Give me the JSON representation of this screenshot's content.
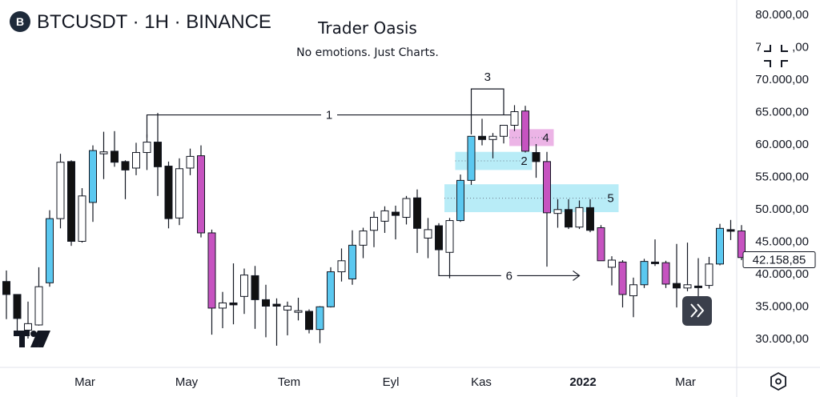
{
  "header": {
    "symbol_badge": "B",
    "symbol": "BTCUSDT · 1H · BINANCE",
    "title": "Trader Oasis",
    "subtitle": "No emotions. Just Charts."
  },
  "colors": {
    "bull": "#5bc8f0",
    "bear": "#c653c0",
    "neutral_dark": "#111111",
    "neutral_light": "#ffffff",
    "zone_blue": "#b8ecf7",
    "zone_pink": "#ecb4e6"
  },
  "icons": [
    "logo-icon",
    "fullscreen-icon",
    "scroll-to-realtime-icon",
    "settings-hexagon-icon"
  ],
  "chart_data": {
    "type": "candlestick",
    "x": [
      "Mar",
      "May",
      "Tem",
      "Eyl",
      "Kas",
      "2022",
      "Mar"
    ],
    "ylim": [
      26000,
      82000
    ],
    "yticks": [
      "80.000,00",
      "75.000,00",
      "70.000,00",
      "65.000,00",
      "60.000,00",
      "55.000,00",
      "50.000,00",
      "45.000,00",
      "40.000,00",
      "35.000,00",
      "30.000,00"
    ],
    "current_price_label": "42.158,85",
    "current_price": 42158.85,
    "candles": [
      {
        "o": 38800,
        "h": 40500,
        "l": 33000,
        "c": 36800,
        "k": "dark"
      },
      {
        "o": 36800,
        "h": 36800,
        "l": 30500,
        "c": 33100,
        "k": "dark"
      },
      {
        "o": 31300,
        "h": 35700,
        "l": 30000,
        "c": 32300,
        "k": "light"
      },
      {
        "o": 32100,
        "h": 41000,
        "l": 32000,
        "c": 38000,
        "k": "light"
      },
      {
        "o": 38600,
        "h": 49800,
        "l": 38000,
        "c": 48500,
        "k": "blue"
      },
      {
        "o": 48500,
        "h": 58500,
        "l": 47000,
        "c": 57200,
        "k": "light"
      },
      {
        "o": 57300,
        "h": 57500,
        "l": 44300,
        "c": 45000,
        "k": "dark"
      },
      {
        "o": 45000,
        "h": 53200,
        "l": 44800,
        "c": 52000,
        "k": "light"
      },
      {
        "o": 51000,
        "h": 59800,
        "l": 48000,
        "c": 59000,
        "k": "blue"
      },
      {
        "o": 58500,
        "h": 61900,
        "l": 54600,
        "c": 58800,
        "k": "light"
      },
      {
        "o": 58900,
        "h": 62000,
        "l": 56500,
        "c": 57200,
        "k": "dark"
      },
      {
        "o": 57300,
        "h": 57500,
        "l": 51500,
        "c": 56000,
        "k": "dark"
      },
      {
        "o": 56300,
        "h": 60200,
        "l": 55200,
        "c": 58700,
        "k": "light"
      },
      {
        "o": 58700,
        "h": 61500,
        "l": 56000,
        "c": 60300,
        "k": "light"
      },
      {
        "o": 60300,
        "h": 64800,
        "l": 52000,
        "c": 56500,
        "k": "dark"
      },
      {
        "o": 56600,
        "h": 57300,
        "l": 47000,
        "c": 48500,
        "k": "dark"
      },
      {
        "o": 48600,
        "h": 57800,
        "l": 47500,
        "c": 56200,
        "k": "light"
      },
      {
        "o": 56300,
        "h": 59300,
        "l": 55200,
        "c": 58100,
        "k": "light"
      },
      {
        "o": 58200,
        "h": 59800,
        "l": 45600,
        "c": 46300,
        "k": "pink"
      },
      {
        "o": 46300,
        "h": 46800,
        "l": 30600,
        "c": 34700,
        "k": "pink"
      },
      {
        "o": 34700,
        "h": 37200,
        "l": 31600,
        "c": 35500,
        "k": "light"
      },
      {
        "o": 35200,
        "h": 41600,
        "l": 32200,
        "c": 35500,
        "k": "dark"
      },
      {
        "o": 36500,
        "h": 40800,
        "l": 33800,
        "c": 39800,
        "k": "light"
      },
      {
        "o": 39700,
        "h": 41200,
        "l": 31500,
        "c": 36000,
        "k": "dark"
      },
      {
        "o": 36000,
        "h": 38300,
        "l": 30200,
        "c": 35000,
        "k": "dark"
      },
      {
        "o": 35000,
        "h": 36200,
        "l": 28900,
        "c": 35300,
        "k": "dark"
      },
      {
        "o": 35000,
        "h": 35700,
        "l": 30500,
        "c": 34400,
        "k": "light"
      },
      {
        "o": 34200,
        "h": 36300,
        "l": 32800,
        "c": 34300,
        "k": "light"
      },
      {
        "o": 34200,
        "h": 34500,
        "l": 30800,
        "c": 31400,
        "k": "dark"
      },
      {
        "o": 31400,
        "h": 35000,
        "l": 29300,
        "c": 34900,
        "k": "blue"
      },
      {
        "o": 34900,
        "h": 41000,
        "l": 34800,
        "c": 40300,
        "k": "blue"
      },
      {
        "o": 40300,
        "h": 43900,
        "l": 38800,
        "c": 42000,
        "k": "light"
      },
      {
        "o": 39200,
        "h": 46700,
        "l": 38300,
        "c": 44400,
        "k": "blue"
      },
      {
        "o": 44400,
        "h": 47100,
        "l": 42400,
        "c": 46600,
        "k": "light"
      },
      {
        "o": 46700,
        "h": 49600,
        "l": 44100,
        "c": 48700,
        "k": "light"
      },
      {
        "o": 48100,
        "h": 50400,
        "l": 46300,
        "c": 49700,
        "k": "light"
      },
      {
        "o": 49500,
        "h": 50500,
        "l": 45300,
        "c": 49000,
        "k": "dark"
      },
      {
        "o": 48700,
        "h": 52000,
        "l": 47600,
        "c": 51600,
        "k": "light"
      },
      {
        "o": 51700,
        "h": 53000,
        "l": 43200,
        "c": 47000,
        "k": "dark"
      },
      {
        "o": 46800,
        "h": 48600,
        "l": 42400,
        "c": 45500,
        "k": "light"
      },
      {
        "o": 47400,
        "h": 47800,
        "l": 43800,
        "c": 43700,
        "k": "dark"
      },
      {
        "o": 43300,
        "h": 48600,
        "l": 39300,
        "c": 48200,
        "k": "light"
      },
      {
        "o": 48200,
        "h": 55300,
        "l": 48000,
        "c": 54400,
        "k": "blue"
      },
      {
        "o": 54400,
        "h": 61000,
        "l": 53700,
        "c": 61200,
        "k": "blue"
      },
      {
        "o": 61200,
        "h": 63900,
        "l": 59800,
        "c": 60700,
        "k": "dark"
      },
      {
        "o": 60700,
        "h": 61700,
        "l": 57800,
        "c": 61200,
        "k": "light"
      },
      {
        "o": 61200,
        "h": 62500,
        "l": 60100,
        "c": 62900,
        "k": "light"
      },
      {
        "o": 62900,
        "h": 66000,
        "l": 62000,
        "c": 65000,
        "k": "light"
      },
      {
        "o": 65100,
        "h": 65900,
        "l": 58700,
        "c": 58900,
        "k": "pink"
      },
      {
        "o": 58700,
        "h": 60000,
        "l": 54800,
        "c": 57300,
        "k": "dark"
      },
      {
        "o": 57300,
        "h": 58800,
        "l": 41100,
        "c": 49400,
        "k": "pink"
      },
      {
        "o": 49300,
        "h": 51500,
        "l": 47100,
        "c": 49900,
        "k": "light"
      },
      {
        "o": 49900,
        "h": 51500,
        "l": 46900,
        "c": 47200,
        "k": "dark"
      },
      {
        "o": 47200,
        "h": 51300,
        "l": 46900,
        "c": 50200,
        "k": "light"
      },
      {
        "o": 50200,
        "h": 51500,
        "l": 46400,
        "c": 46700,
        "k": "dark"
      },
      {
        "o": 47100,
        "h": 47500,
        "l": 42500,
        "c": 42000,
        "k": "pink"
      },
      {
        "o": 41000,
        "h": 42700,
        "l": 38200,
        "c": 42100,
        "k": "light"
      },
      {
        "o": 41800,
        "h": 42100,
        "l": 34800,
        "c": 36800,
        "k": "pink"
      },
      {
        "o": 36600,
        "h": 39400,
        "l": 33300,
        "c": 38300,
        "k": "light"
      },
      {
        "o": 38300,
        "h": 42300,
        "l": 37800,
        "c": 41900,
        "k": "blue"
      },
      {
        "o": 41800,
        "h": 45300,
        "l": 41200,
        "c": 41700,
        "k": "dark"
      },
      {
        "o": 41700,
        "h": 42000,
        "l": 37800,
        "c": 38400,
        "k": "pink"
      },
      {
        "o": 38500,
        "h": 44600,
        "l": 34800,
        "c": 37800,
        "k": "dark"
      },
      {
        "o": 37800,
        "h": 44800,
        "l": 37300,
        "c": 38300,
        "k": "light"
      },
      {
        "o": 38100,
        "h": 42400,
        "l": 34900,
        "c": 38000,
        "k": "dark"
      },
      {
        "o": 38200,
        "h": 42600,
        "l": 37700,
        "c": 41500,
        "k": "light"
      },
      {
        "o": 41500,
        "h": 47700,
        "l": 41300,
        "c": 47000,
        "k": "blue"
      },
      {
        "o": 46800,
        "h": 48300,
        "l": 45200,
        "c": 46600,
        "k": "dark"
      },
      {
        "o": 46600,
        "h": 47500,
        "l": 42100,
        "c": 42500,
        "k": "pink"
      }
    ],
    "annotations": [
      {
        "label": "1",
        "type": "bracket-line",
        "from_candle": 13,
        "to_candle": 47,
        "price": 64500
      },
      {
        "label": "2",
        "type": "zone",
        "from_candle": 42,
        "to_candle": 48,
        "price_low": 56000,
        "price_high": 58800
      },
      {
        "label": "3",
        "type": "bracket",
        "from_candle": 43,
        "to_candle": 46,
        "price": 68500
      },
      {
        "label": "4",
        "type": "zone",
        "from_candle": 47,
        "to_candle": 50,
        "price_low": 59700,
        "price_high": 62300
      },
      {
        "label": "5",
        "type": "zone",
        "from_candle": 41,
        "to_candle": 56,
        "price_low": 49500,
        "price_high": 53800
      },
      {
        "label": "6",
        "type": "arrow",
        "from_candle": 40,
        "to_candle": 53,
        "price": 39700
      }
    ]
  }
}
